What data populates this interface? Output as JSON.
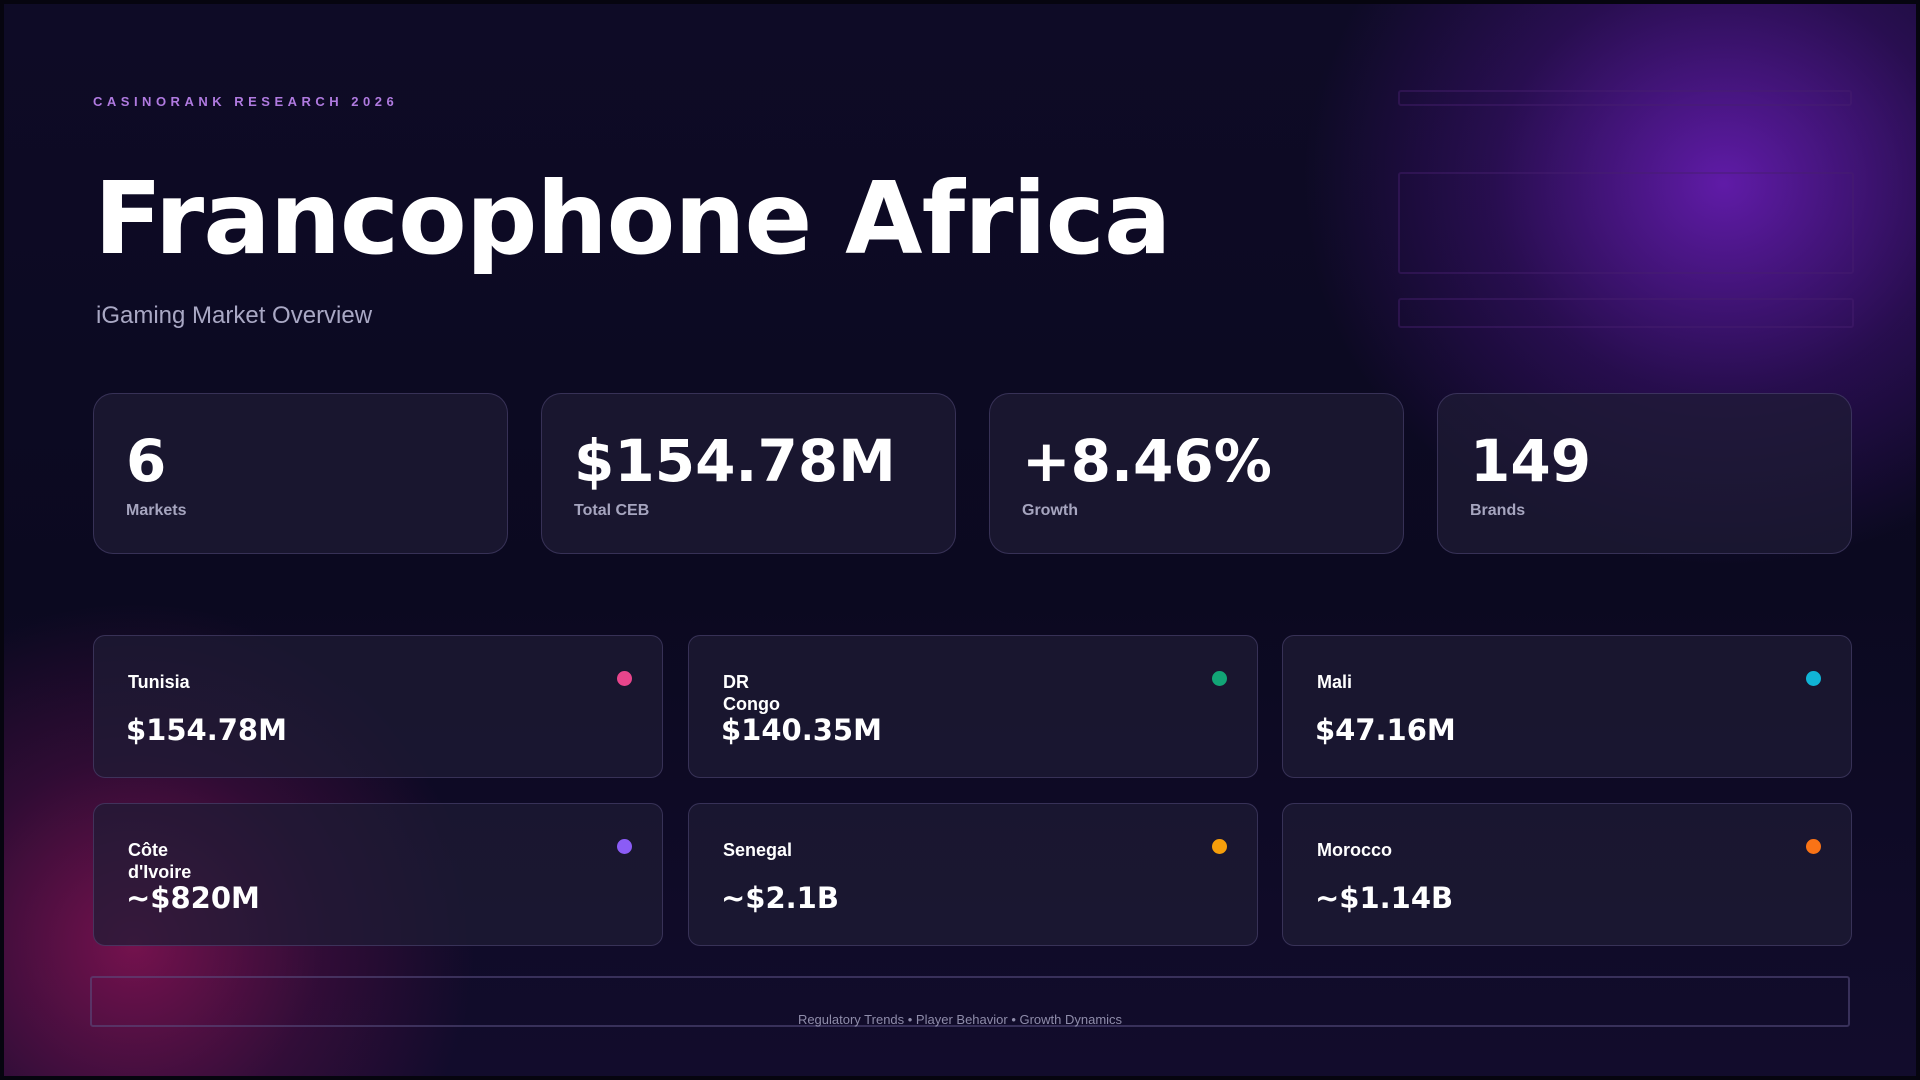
{
  "header": {
    "eyebrow": "CASINORANK RESEARCH 2026",
    "title": "Francophone Africa",
    "subtitle": "iGaming Market Overview"
  },
  "stats": [
    {
      "value": "6",
      "label": "Markets"
    },
    {
      "value": "$154.78M",
      "label": "Total CEB"
    },
    {
      "value": "+8.46%",
      "label": "Growth"
    },
    {
      "value": "149",
      "label": "Brands"
    }
  ],
  "markets": [
    {
      "name": "Tunisia",
      "value": "$154.78M",
      "dot_color": "#e8458c"
    },
    {
      "name": "DR Congo",
      "value": "$140.35M",
      "dot_color": "#12a576"
    },
    {
      "name": "Mali",
      "value": "$47.16M",
      "dot_color": "#10b4d6"
    },
    {
      "name": "Côte d'Ivoire",
      "value": "~$820M",
      "dot_color": "#8b5cf6"
    },
    {
      "name": "Senegal",
      "value": "~$2.1B",
      "dot_color": "#f59e0b"
    },
    {
      "name": "Morocco",
      "value": "~$1.14B",
      "dot_color": "#f97316"
    }
  ],
  "footer": {
    "text": "Regulatory Trends • Player Behavior • Growth Dynamics"
  },
  "colors": {
    "background": "#0d0a22",
    "accent_purple": "#6e1ebe",
    "accent_magenta": "#96145a",
    "eyebrow": "#b07ae0"
  }
}
